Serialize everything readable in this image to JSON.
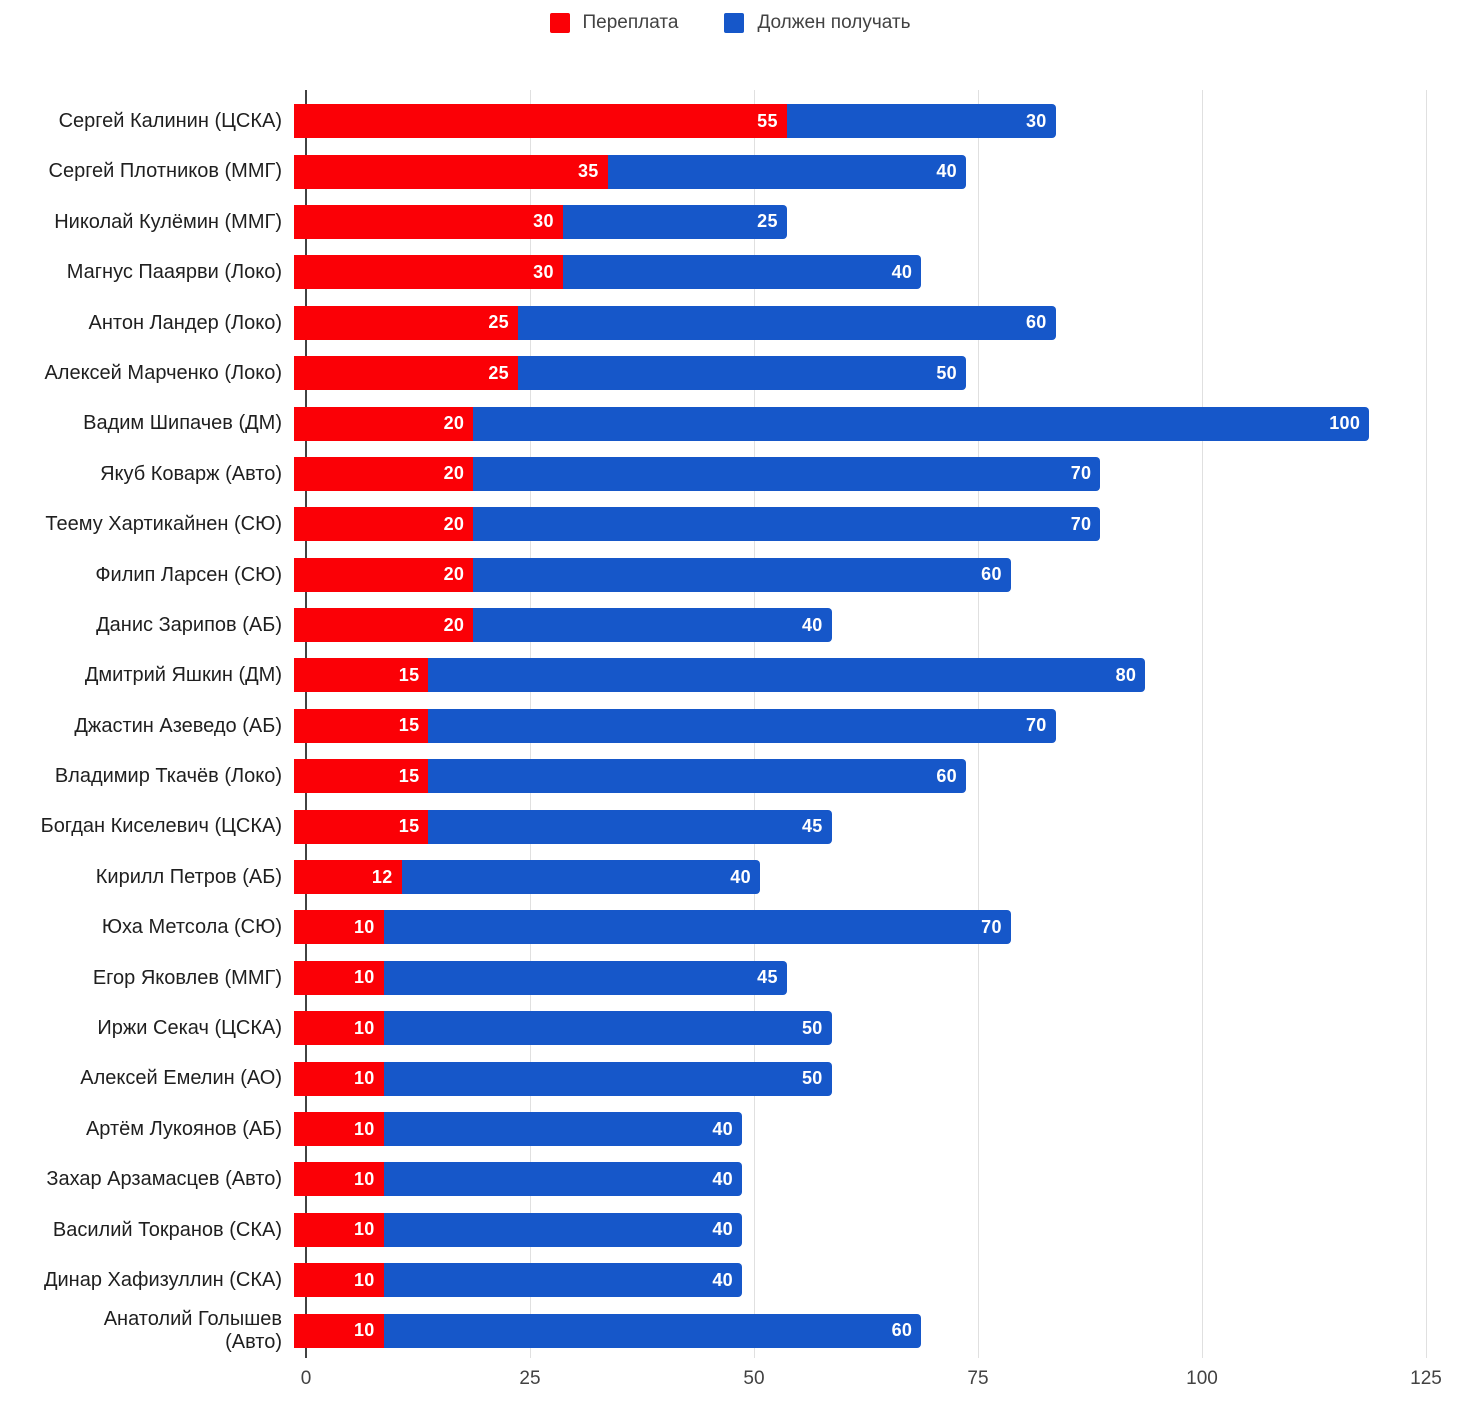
{
  "legend": {
    "items": [
      {
        "label": "Переплата",
        "color": "#fb0006"
      },
      {
        "label": "Должен получать",
        "color": "#1657c9"
      }
    ]
  },
  "chart_data": {
    "type": "bar",
    "orientation": "horizontal",
    "stacked": true,
    "title": "",
    "xlabel": "",
    "ylabel": "",
    "xlim": [
      0,
      125
    ],
    "x_ticks": [
      0,
      25,
      50,
      75,
      100,
      125
    ],
    "grid": true,
    "legend_position": "top",
    "categories": [
      "Сергей Калинин (ЦСКА)",
      "Сергей Плотников (ММГ)",
      "Николай Кулёмин (ММГ)",
      "Магнус Пааярви (Локо)",
      "Антон Ландер (Локо)",
      "Алексей Марченко (Локо)",
      "Вадим Шипачев (ДМ)",
      "Якуб Коварж (Авто)",
      "Теему Хартикайнен (СЮ)",
      "Филип Ларсен (СЮ)",
      "Данис Зарипов (АБ)",
      "Дмитрий Яшкин (ДМ)",
      "Джастин Азеведо (АБ)",
      "Владимир Ткачёв (Локо)",
      "Богдан Киселевич (ЦСКА)",
      "Кирилл Петров (АБ)",
      "Юха Метсола (СЮ)",
      "Егор Яковлев (ММГ)",
      "Иржи Секач (ЦСКА)",
      "Алексей Емелин (АО)",
      "Артём Лукоянов (АБ)",
      "Захар Арзамасцев (Авто)",
      "Василий Токранов (СКА)",
      "Динар Хафизуллин (СКА)",
      "Анатолий Голышев\n(Авто)"
    ],
    "series": [
      {
        "name": "Переплата",
        "color": "#fb0006",
        "values": [
          55,
          35,
          30,
          30,
          25,
          25,
          20,
          20,
          20,
          20,
          20,
          15,
          15,
          15,
          15,
          12,
          10,
          10,
          10,
          10,
          10,
          10,
          10,
          10,
          10
        ]
      },
      {
        "name": "Должен получать",
        "color": "#1657c9",
        "values": [
          30,
          40,
          25,
          40,
          60,
          50,
          100,
          70,
          70,
          60,
          40,
          80,
          70,
          60,
          45,
          40,
          70,
          45,
          50,
          50,
          40,
          40,
          40,
          40,
          60
        ]
      }
    ]
  }
}
